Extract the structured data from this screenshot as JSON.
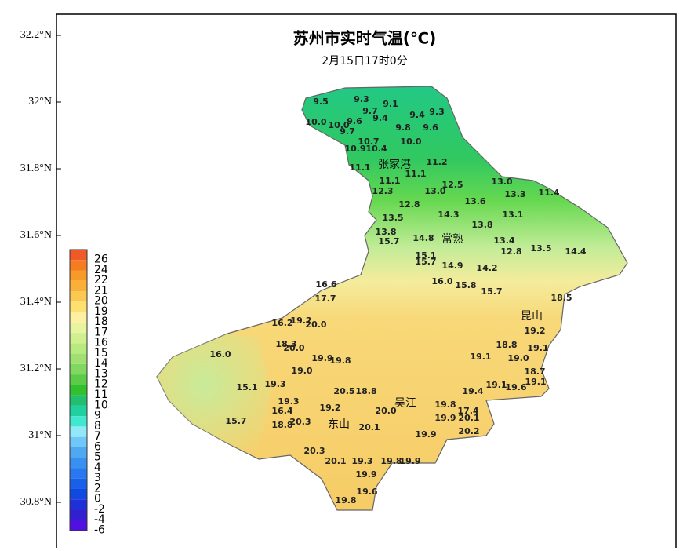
{
  "title": "苏州市实时气温(℃)",
  "subtitle": "2月15日17时0分",
  "lat_ticks": [
    {
      "value": 32.2,
      "label": "32.2°N"
    },
    {
      "value": 32,
      "label": "32°N"
    },
    {
      "value": 31.8,
      "label": "31.8°N"
    },
    {
      "value": 31.6,
      "label": "31.6°N"
    },
    {
      "value": 31.4,
      "label": "31.4°N"
    },
    {
      "value": 31.2,
      "label": "31.2°N"
    },
    {
      "value": 31,
      "label": "31°N"
    },
    {
      "value": 30.8,
      "label": "30.8°N"
    }
  ],
  "legend": [
    {
      "value": 26,
      "color": "#f05a28"
    },
    {
      "value": 24,
      "color": "#f57c20"
    },
    {
      "value": 22,
      "color": "#f89a28"
    },
    {
      "value": 21,
      "color": "#fab038"
    },
    {
      "value": 20,
      "color": "#fcc850"
    },
    {
      "value": 19,
      "color": "#fde070"
    },
    {
      "value": 18,
      "color": "#fef0a0"
    },
    {
      "value": 17,
      "color": "#e8f5a0"
    },
    {
      "value": 16,
      "color": "#d0f090"
    },
    {
      "value": 15,
      "color": "#b8ea80"
    },
    {
      "value": 14,
      "color": "#a0e070"
    },
    {
      "value": 13,
      "color": "#80d860"
    },
    {
      "value": 12,
      "color": "#5ccc48"
    },
    {
      "value": 11,
      "color": "#30c030"
    },
    {
      "value": 10,
      "color": "#20c070"
    },
    {
      "value": 9,
      "color": "#20d0a0"
    },
    {
      "value": 8,
      "color": "#40e8d0"
    },
    {
      "value": 7,
      "color": "#90e8f8"
    },
    {
      "value": 6,
      "color": "#70c8f8"
    },
    {
      "value": 5,
      "color": "#50a8f0"
    },
    {
      "value": 4,
      "color": "#3890f0"
    },
    {
      "value": 3,
      "color": "#2878f0"
    },
    {
      "value": 2,
      "color": "#1860e8"
    },
    {
      "value": 0,
      "color": "#1048e0"
    },
    {
      "value": -2,
      "color": "#2030d8"
    },
    {
      "value": -4,
      "color": "#3020d0"
    },
    {
      "value": -6,
      "color": "#5010e0"
    }
  ],
  "cities": [
    "张家港",
    "常熟",
    "昆山",
    "吴江",
    "东山"
  ],
  "stations": [
    "9.5",
    "9.3",
    "9.1",
    "10.0",
    "10.0",
    "9.7",
    "9.6",
    "9.7",
    "9.4",
    "9.8",
    "9.4",
    "9.3",
    "9.6",
    "10.7",
    "10.9",
    "10.4",
    "10.0",
    "11.1",
    "11.2",
    "11.1",
    "11.1",
    "12.3",
    "12.8",
    "13.0",
    "12.5",
    "13.0",
    "13.3",
    "11.4",
    "13.6",
    "13.5",
    "14.3",
    "13.1",
    "13.8",
    "15.7",
    "14.8",
    "13.8",
    "13.4",
    "12.8",
    "13.5",
    "14.4",
    "15.1",
    "15.7",
    "14.9",
    "14.2",
    "16.0",
    "15.8",
    "15.7",
    "16.6",
    "17.7",
    "18.5",
    "16.2",
    "19.2",
    "20.0",
    "18.3",
    "20.0",
    "19.0",
    "16.0",
    "15.1",
    "19.3",
    "19.9",
    "19.8",
    "20.5",
    "18.8",
    "19.3",
    "16.4",
    "15.7",
    "18.8",
    "20.3",
    "19.2",
    "20.0",
    "19.8",
    "17.4",
    "19.9",
    "20.1",
    "20.2",
    "20.1",
    "19.9",
    "20.3",
    "20.1",
    "19.3",
    "19.8",
    "19.9",
    "19.9",
    "19.6",
    "19.8",
    "19.0",
    "18.7",
    "19.1",
    "19.1",
    "19.6",
    "19.4",
    "19.1",
    "18.8",
    "19.1",
    "19.2"
  ]
}
